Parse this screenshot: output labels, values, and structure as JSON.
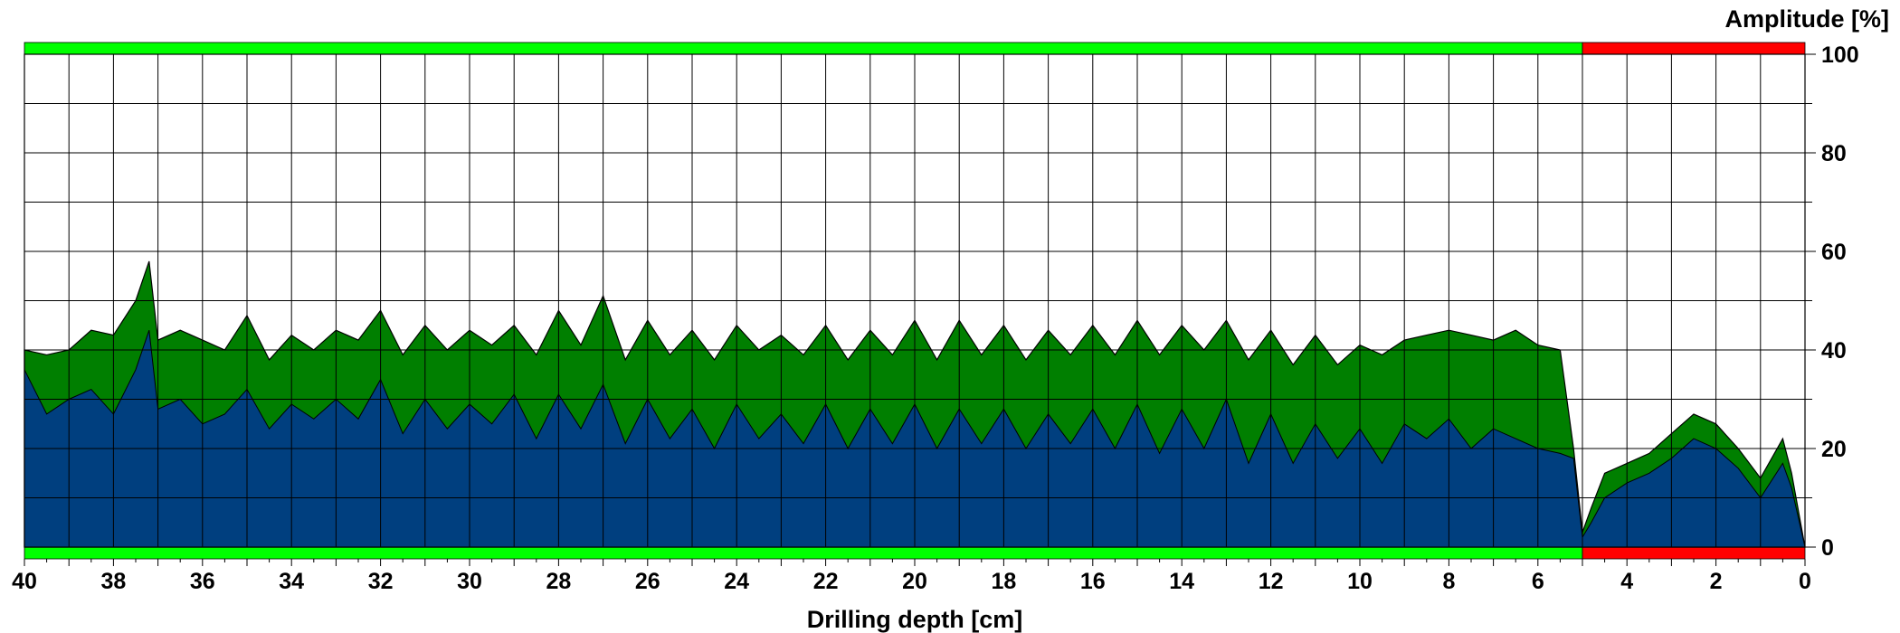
{
  "chart_data": {
    "type": "area",
    "xlabel": "Drilling depth [cm]",
    "ylabel": "Amplitude [%]",
    "xlim": [
      40,
      0
    ],
    "ylim": [
      0,
      100
    ],
    "x_ticks": [
      "40",
      "38",
      "36",
      "34",
      "32",
      "30",
      "28",
      "26",
      "24",
      "22",
      "20",
      "18",
      "16",
      "14",
      "12",
      "10",
      "8",
      "6",
      "4",
      "2",
      "0"
    ],
    "y_ticks": [
      "0",
      "20",
      "40",
      "60",
      "80",
      "100"
    ],
    "grid": true,
    "x_reversed": true,
    "colors": {
      "upper_series": "#007f00",
      "lower_series": "#003f7f",
      "status_ok": "#00ff00",
      "status_bad": "#ff0000"
    },
    "status_bar": [
      {
        "from": 40,
        "to": 5.0,
        "status": "ok"
      },
      {
        "from": 5.0,
        "to": 0,
        "status": "bad"
      }
    ],
    "series": [
      {
        "x": [
          40,
          39.5,
          39,
          38.5,
          38,
          37.5,
          37.2,
          37,
          36.5,
          36,
          35.5,
          35,
          34.5,
          34,
          33.5,
          33,
          32.5,
          32,
          31.5,
          31,
          30.5,
          30,
          29.5,
          29,
          28.5,
          28,
          27.5,
          27,
          26.5,
          26,
          25.5,
          25,
          24.5,
          24,
          23.5,
          23,
          22.5,
          22,
          21.5,
          21,
          20.5,
          20,
          19.5,
          19,
          18.5,
          18,
          17.5,
          17,
          16.5,
          16,
          15.5,
          15,
          14.5,
          14,
          13.5,
          13,
          12.5,
          12,
          11.5,
          11,
          10.5,
          10,
          9.5,
          9,
          8.5,
          8,
          7.5,
          7,
          6.5,
          6,
          5.5,
          5.2,
          5.0,
          4.8,
          4.5,
          4.0,
          3.5,
          3.0,
          2.5,
          2.0,
          1.5,
          1.0,
          0.5,
          0.3,
          0
        ],
        "values": [
          40,
          39,
          40,
          44,
          43,
          50,
          58,
          42,
          44,
          42,
          40,
          47,
          38,
          43,
          40,
          44,
          42,
          48,
          39,
          45,
          40,
          44,
          41,
          45,
          39,
          48,
          41,
          51,
          38,
          46,
          39,
          44,
          38,
          45,
          40,
          43,
          39,
          45,
          38,
          44,
          39,
          46,
          38,
          46,
          39,
          45,
          38,
          44,
          39,
          45,
          39,
          46,
          39,
          45,
          40,
          46,
          38,
          44,
          37,
          43,
          37,
          41,
          39,
          42,
          43,
          44,
          43,
          42,
          44,
          41,
          40,
          20,
          3,
          8,
          15,
          17,
          19,
          23,
          27,
          25,
          20,
          14,
          22,
          15,
          0
        ]
      },
      {
        "x": [
          40,
          39.5,
          39,
          38.5,
          38,
          37.5,
          37.2,
          37,
          36.5,
          36,
          35.5,
          35,
          34.5,
          34,
          33.5,
          33,
          32.5,
          32,
          31.5,
          31,
          30.5,
          30,
          29.5,
          29,
          28.5,
          28,
          27.5,
          27,
          26.5,
          26,
          25.5,
          25,
          24.5,
          24,
          23.5,
          23,
          22.5,
          22,
          21.5,
          21,
          20.5,
          20,
          19.5,
          19,
          18.5,
          18,
          17.5,
          17,
          16.5,
          16,
          15.5,
          15,
          14.5,
          14,
          13.5,
          13,
          12.5,
          12,
          11.5,
          11,
          10.5,
          10,
          9.5,
          9,
          8.5,
          8,
          7.5,
          7,
          6.5,
          6,
          5.5,
          5.2,
          5.0,
          4.8,
          4.5,
          4.0,
          3.5,
          3.0,
          2.5,
          2.0,
          1.5,
          1.0,
          0.5,
          0.3,
          0
        ],
        "values": [
          36,
          27,
          30,
          32,
          27,
          36,
          44,
          28,
          30,
          25,
          27,
          32,
          24,
          29,
          26,
          30,
          26,
          34,
          23,
          30,
          24,
          29,
          25,
          31,
          22,
          31,
          24,
          33,
          21,
          30,
          22,
          28,
          20,
          29,
          22,
          27,
          21,
          29,
          20,
          28,
          21,
          29,
          20,
          28,
          21,
          28,
          20,
          27,
          21,
          28,
          20,
          29,
          19,
          28,
          20,
          30,
          17,
          27,
          17,
          25,
          18,
          24,
          17,
          25,
          22,
          26,
          20,
          24,
          22,
          20,
          19,
          18,
          2,
          5,
          10,
          13,
          15,
          18,
          22,
          20,
          16,
          10,
          17,
          12,
          0
        ]
      }
    ]
  }
}
